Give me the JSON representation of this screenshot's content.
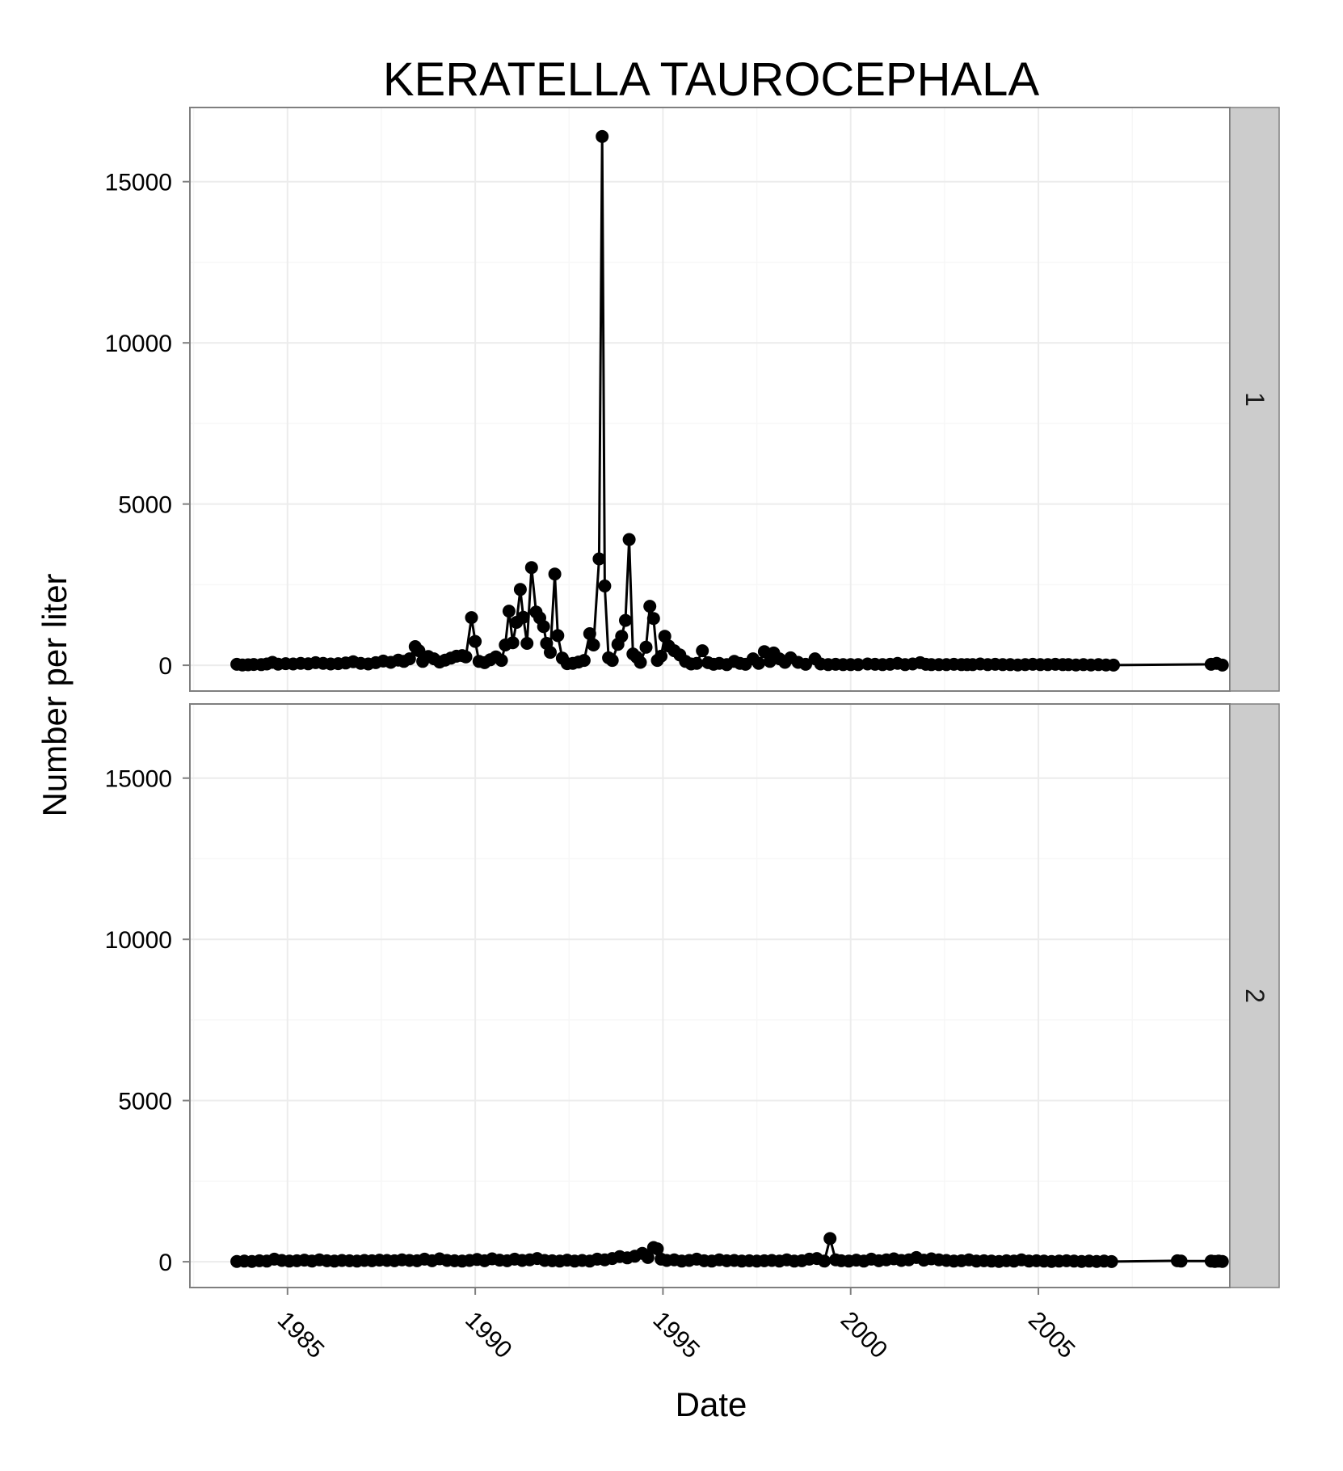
{
  "chart_data": {
    "type": "line",
    "title": "KERATELLA TAUROCEPHALA",
    "xlabel": "Date",
    "ylabel": "Number per liter",
    "x_ticks": [
      "1985",
      "1990",
      "1995",
      "2000",
      "2005"
    ],
    "y_ticks": [
      "0",
      "5000",
      "10000",
      "15000"
    ],
    "xlim": [
      1982.4,
      2010.1
    ],
    "ylim": [
      -800,
      17300
    ],
    "grid": true,
    "markers": "points",
    "legend": "none",
    "colors": {
      "line": "#000000",
      "panel_border": "#7f7f7f",
      "strip_fill": "#cccccc",
      "grid_major": "#ececec",
      "grid_minor": "#f7f7f7"
    },
    "panels": [
      {
        "strip_label": "1",
        "points": [
          [
            1983.65,
            30
          ],
          [
            1983.8,
            10
          ],
          [
            1983.95,
            15
          ],
          [
            1984.1,
            25
          ],
          [
            1984.3,
            20
          ],
          [
            1984.45,
            40
          ],
          [
            1984.6,
            90
          ],
          [
            1984.75,
            35
          ],
          [
            1984.95,
            50
          ],
          [
            1985.15,
            40
          ],
          [
            1985.35,
            60
          ],
          [
            1985.55,
            45
          ],
          [
            1985.75,
            80
          ],
          [
            1985.95,
            60
          ],
          [
            1986.15,
            40
          ],
          [
            1986.35,
            50
          ],
          [
            1986.55,
            70
          ],
          [
            1986.75,
            110
          ],
          [
            1986.95,
            60
          ],
          [
            1987.15,
            40
          ],
          [
            1987.35,
            80
          ],
          [
            1987.55,
            130
          ],
          [
            1987.75,
            90
          ],
          [
            1987.95,
            160
          ],
          [
            1988.1,
            120
          ],
          [
            1988.25,
            200
          ],
          [
            1988.4,
            580
          ],
          [
            1988.5,
            450
          ],
          [
            1988.6,
            120
          ],
          [
            1988.75,
            270
          ],
          [
            1988.9,
            200
          ],
          [
            1989.05,
            100
          ],
          [
            1989.2,
            160
          ],
          [
            1989.35,
            220
          ],
          [
            1989.5,
            280
          ],
          [
            1989.65,
            300
          ],
          [
            1989.75,
            260
          ],
          [
            1989.9,
            1480
          ],
          [
            1990.0,
            740
          ],
          [
            1990.1,
            120
          ],
          [
            1990.25,
            80
          ],
          [
            1990.4,
            170
          ],
          [
            1990.55,
            260
          ],
          [
            1990.7,
            150
          ],
          [
            1990.8,
            630
          ],
          [
            1990.9,
            1680
          ],
          [
            1991.0,
            700
          ],
          [
            1991.1,
            1330
          ],
          [
            1991.2,
            2350
          ],
          [
            1991.28,
            1490
          ],
          [
            1991.38,
            680
          ],
          [
            1991.5,
            3030
          ],
          [
            1991.62,
            1650
          ],
          [
            1991.72,
            1470
          ],
          [
            1991.82,
            1200
          ],
          [
            1991.9,
            680
          ],
          [
            1992.0,
            400
          ],
          [
            1992.12,
            2830
          ],
          [
            1992.2,
            920
          ],
          [
            1992.32,
            220
          ],
          [
            1992.45,
            50
          ],
          [
            1992.6,
            60
          ],
          [
            1992.75,
            100
          ],
          [
            1992.9,
            150
          ],
          [
            1993.05,
            980
          ],
          [
            1993.15,
            630
          ],
          [
            1993.3,
            3300
          ],
          [
            1993.38,
            16400
          ],
          [
            1993.45,
            2460
          ],
          [
            1993.55,
            230
          ],
          [
            1993.65,
            150
          ],
          [
            1993.8,
            650
          ],
          [
            1993.9,
            900
          ],
          [
            1994.0,
            1390
          ],
          [
            1994.1,
            3900
          ],
          [
            1994.2,
            350
          ],
          [
            1994.3,
            250
          ],
          [
            1994.4,
            90
          ],
          [
            1994.55,
            560
          ],
          [
            1994.65,
            1830
          ],
          [
            1994.75,
            1450
          ],
          [
            1994.85,
            150
          ],
          [
            1994.95,
            280
          ],
          [
            1995.05,
            900
          ],
          [
            1995.15,
            600
          ],
          [
            1995.3,
            450
          ],
          [
            1995.45,
            320
          ],
          [
            1995.6,
            120
          ],
          [
            1995.75,
            40
          ],
          [
            1995.9,
            60
          ],
          [
            1996.05,
            450
          ],
          [
            1996.2,
            80
          ],
          [
            1996.35,
            30
          ],
          [
            1996.5,
            60
          ],
          [
            1996.7,
            20
          ],
          [
            1996.9,
            120
          ],
          [
            1997.05,
            60
          ],
          [
            1997.2,
            30
          ],
          [
            1997.4,
            200
          ],
          [
            1997.55,
            60
          ],
          [
            1997.7,
            420
          ],
          [
            1997.85,
            120
          ],
          [
            1997.95,
            380
          ],
          [
            1998.1,
            200
          ],
          [
            1998.25,
            90
          ],
          [
            1998.4,
            230
          ],
          [
            1998.6,
            90
          ],
          [
            1998.8,
            30
          ],
          [
            1999.05,
            200
          ],
          [
            1999.2,
            40
          ],
          [
            1999.4,
            20
          ],
          [
            1999.6,
            30
          ],
          [
            1999.8,
            20
          ],
          [
            2000.0,
            20
          ],
          [
            2000.2,
            20
          ],
          [
            2000.45,
            40
          ],
          [
            2000.65,
            30
          ],
          [
            2000.85,
            20
          ],
          [
            2001.05,
            30
          ],
          [
            2001.25,
            60
          ],
          [
            2001.45,
            20
          ],
          [
            2001.65,
            40
          ],
          [
            2001.85,
            80
          ],
          [
            2002.0,
            30
          ],
          [
            2002.15,
            20
          ],
          [
            2002.35,
            20
          ],
          [
            2002.55,
            20
          ],
          [
            2002.75,
            30
          ],
          [
            2002.95,
            20
          ],
          [
            2003.1,
            20
          ],
          [
            2003.25,
            20
          ],
          [
            2003.45,
            40
          ],
          [
            2003.65,
            20
          ],
          [
            2003.85,
            30
          ],
          [
            2004.05,
            20
          ],
          [
            2004.25,
            20
          ],
          [
            2004.45,
            10
          ],
          [
            2004.65,
            20
          ],
          [
            2004.85,
            30
          ],
          [
            2005.05,
            20
          ],
          [
            2005.25,
            20
          ],
          [
            2005.45,
            30
          ],
          [
            2005.65,
            20
          ],
          [
            2005.8,
            20
          ],
          [
            2006.0,
            10
          ],
          [
            2006.2,
            20
          ],
          [
            2006.4,
            10
          ],
          [
            2006.6,
            20
          ],
          [
            2006.8,
            10
          ],
          [
            2007.0,
            5
          ],
          [
            2009.6,
            30
          ],
          [
            2009.75,
            60
          ],
          [
            2009.9,
            5
          ]
        ]
      },
      {
        "strip_label": "2",
        "points": [
          [
            1983.65,
            10
          ],
          [
            1983.85,
            20
          ],
          [
            1984.05,
            10
          ],
          [
            1984.25,
            30
          ],
          [
            1984.45,
            20
          ],
          [
            1984.65,
            80
          ],
          [
            1984.85,
            40
          ],
          [
            1985.05,
            20
          ],
          [
            1985.25,
            30
          ],
          [
            1985.45,
            50
          ],
          [
            1985.65,
            20
          ],
          [
            1985.85,
            60
          ],
          [
            1986.05,
            30
          ],
          [
            1986.25,
            20
          ],
          [
            1986.45,
            40
          ],
          [
            1986.65,
            30
          ],
          [
            1986.85,
            20
          ],
          [
            1987.05,
            40
          ],
          [
            1987.25,
            30
          ],
          [
            1987.45,
            50
          ],
          [
            1987.65,
            40
          ],
          [
            1987.85,
            30
          ],
          [
            1988.05,
            60
          ],
          [
            1988.25,
            40
          ],
          [
            1988.45,
            30
          ],
          [
            1988.65,
            80
          ],
          [
            1988.85,
            30
          ],
          [
            1989.05,
            90
          ],
          [
            1989.25,
            40
          ],
          [
            1989.45,
            30
          ],
          [
            1989.65,
            20
          ],
          [
            1989.85,
            40
          ],
          [
            1990.05,
            70
          ],
          [
            1990.25,
            30
          ],
          [
            1990.45,
            90
          ],
          [
            1990.65,
            50
          ],
          [
            1990.85,
            30
          ],
          [
            1991.05,
            80
          ],
          [
            1991.25,
            40
          ],
          [
            1991.45,
            60
          ],
          [
            1991.65,
            100
          ],
          [
            1991.85,
            40
          ],
          [
            1992.05,
            30
          ],
          [
            1992.25,
            20
          ],
          [
            1992.45,
            50
          ],
          [
            1992.65,
            20
          ],
          [
            1992.85,
            40
          ],
          [
            1993.05,
            20
          ],
          [
            1993.25,
            80
          ],
          [
            1993.45,
            60
          ],
          [
            1993.65,
            100
          ],
          [
            1993.85,
            160
          ],
          [
            1994.05,
            120
          ],
          [
            1994.25,
            170
          ],
          [
            1994.45,
            260
          ],
          [
            1994.6,
            130
          ],
          [
            1994.75,
            440
          ],
          [
            1994.85,
            400
          ],
          [
            1994.95,
            80
          ],
          [
            1995.1,
            40
          ],
          [
            1995.3,
            60
          ],
          [
            1995.5,
            20
          ],
          [
            1995.7,
            40
          ],
          [
            1995.9,
            80
          ],
          [
            1996.1,
            30
          ],
          [
            1996.3,
            20
          ],
          [
            1996.5,
            60
          ],
          [
            1996.7,
            30
          ],
          [
            1996.9,
            40
          ],
          [
            1997.1,
            20
          ],
          [
            1997.3,
            30
          ],
          [
            1997.5,
            20
          ],
          [
            1997.7,
            30
          ],
          [
            1997.9,
            40
          ],
          [
            1998.1,
            20
          ],
          [
            1998.3,
            60
          ],
          [
            1998.5,
            20
          ],
          [
            1998.7,
            30
          ],
          [
            1998.9,
            80
          ],
          [
            1999.1,
            100
          ],
          [
            1999.3,
            20
          ],
          [
            1999.45,
            720
          ],
          [
            1999.6,
            60
          ],
          [
            1999.75,
            30
          ],
          [
            1999.95,
            20
          ],
          [
            2000.15,
            50
          ],
          [
            2000.35,
            20
          ],
          [
            2000.55,
            80
          ],
          [
            2000.75,
            30
          ],
          [
            2000.95,
            60
          ],
          [
            2001.15,
            90
          ],
          [
            2001.35,
            40
          ],
          [
            2001.55,
            60
          ],
          [
            2001.75,
            130
          ],
          [
            2001.95,
            50
          ],
          [
            2002.15,
            90
          ],
          [
            2002.35,
            60
          ],
          [
            2002.55,
            40
          ],
          [
            2002.75,
            20
          ],
          [
            2002.95,
            30
          ],
          [
            2003.15,
            60
          ],
          [
            2003.35,
            20
          ],
          [
            2003.55,
            30
          ],
          [
            2003.75,
            20
          ],
          [
            2003.95,
            10
          ],
          [
            2004.15,
            30
          ],
          [
            2004.35,
            20
          ],
          [
            2004.55,
            60
          ],
          [
            2004.75,
            20
          ],
          [
            2004.95,
            30
          ],
          [
            2005.15,
            20
          ],
          [
            2005.35,
            10
          ],
          [
            2005.55,
            20
          ],
          [
            2005.75,
            30
          ],
          [
            2005.95,
            20
          ],
          [
            2006.15,
            10
          ],
          [
            2006.35,
            20
          ],
          [
            2006.55,
            10
          ],
          [
            2006.75,
            20
          ],
          [
            2006.95,
            5
          ],
          [
            2008.7,
            30
          ],
          [
            2008.8,
            20
          ],
          [
            2009.6,
            20
          ],
          [
            2009.7,
            10
          ],
          [
            2009.8,
            20
          ],
          [
            2009.9,
            10
          ]
        ]
      }
    ]
  }
}
